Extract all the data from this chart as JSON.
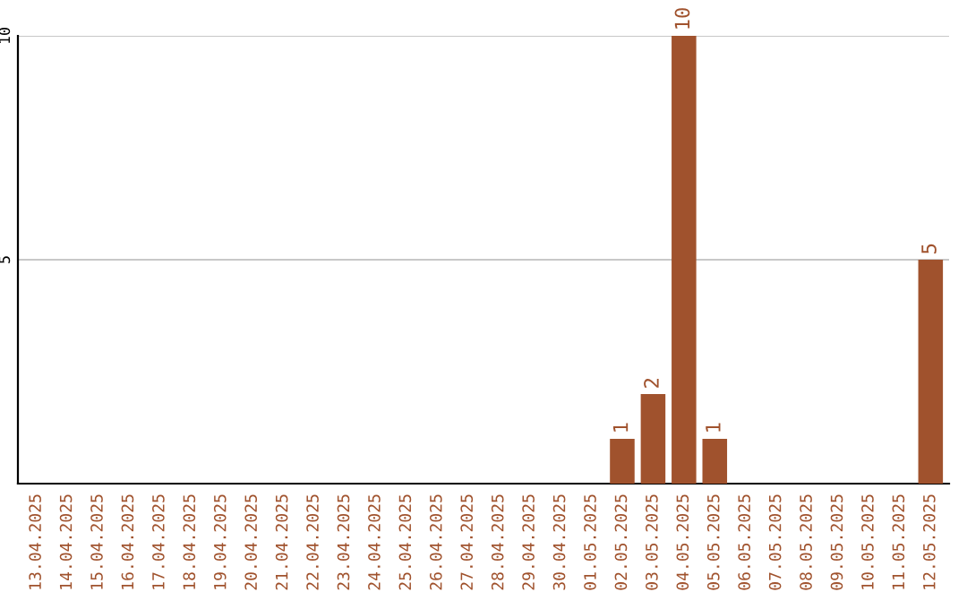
{
  "chart_data": {
    "type": "bar",
    "categories": [
      "13.04.2025",
      "14.04.2025",
      "15.04.2025",
      "16.04.2025",
      "17.04.2025",
      "18.04.2025",
      "19.04.2025",
      "20.04.2025",
      "21.04.2025",
      "22.04.2025",
      "23.04.2025",
      "24.04.2025",
      "25.04.2025",
      "26.04.2025",
      "27.04.2025",
      "28.04.2025",
      "29.04.2025",
      "30.04.2025",
      "01.05.2025",
      "02.05.2025",
      "03.05.2025",
      "04.05.2025",
      "05.05.2025",
      "06.05.2025",
      "07.05.2025",
      "08.05.2025",
      "09.05.2025",
      "10.05.2025",
      "11.05.2025",
      "12.05.2025"
    ],
    "values": [
      0,
      0,
      0,
      0,
      0,
      0,
      0,
      0,
      0,
      0,
      0,
      0,
      0,
      0,
      0,
      0,
      0,
      0,
      0,
      1,
      2,
      10,
      1,
      0,
      0,
      0,
      0,
      0,
      0,
      5
    ],
    "value_labels": [
      null,
      null,
      null,
      null,
      null,
      null,
      null,
      null,
      null,
      null,
      null,
      null,
      null,
      null,
      null,
      null,
      null,
      null,
      null,
      "1",
      "2",
      "10",
      "1",
      null,
      null,
      null,
      null,
      null,
      null,
      "5"
    ],
    "color": "#a0522d",
    "ylim": [
      0,
      10
    ],
    "yticks": [
      5,
      10
    ],
    "grid": "y",
    "legend": false
  }
}
